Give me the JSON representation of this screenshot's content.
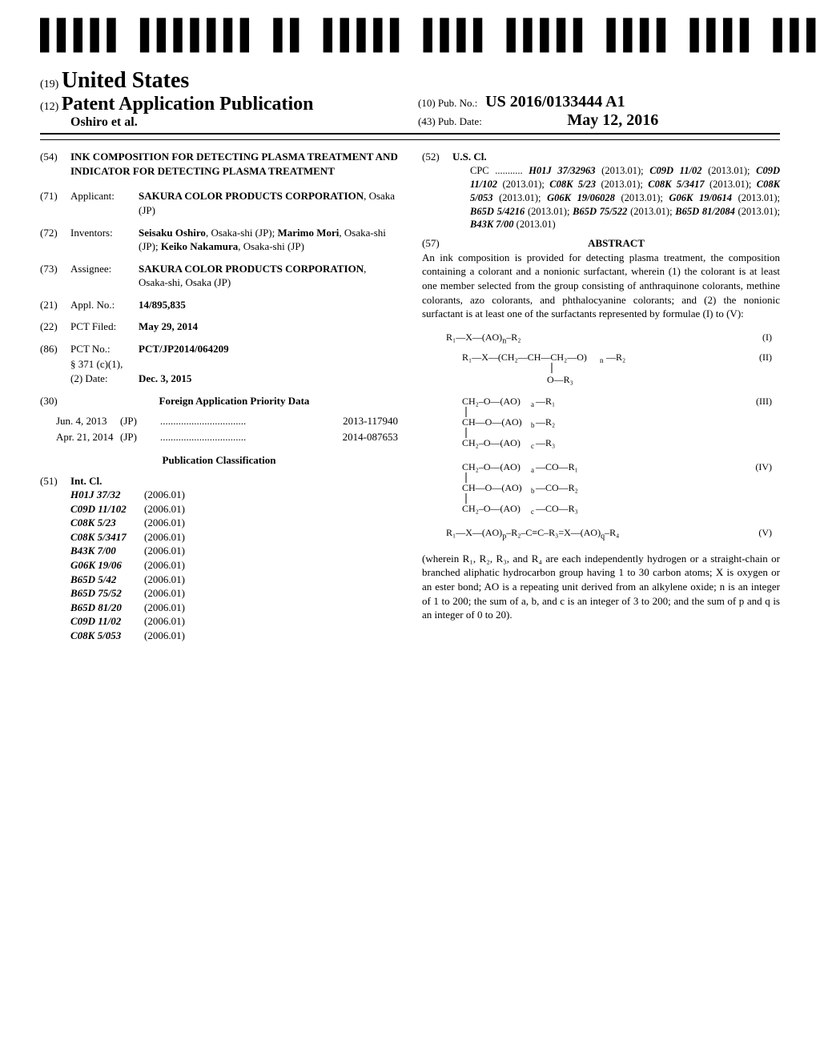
{
  "barcode_text": "US 20160133444A1",
  "country_num": "(19)",
  "country": "United States",
  "doc_type_num": "(12)",
  "doc_type": "Patent Application Publication",
  "authors_line": "Oshiro et al.",
  "pub_no_num": "(10)",
  "pub_no_label": "Pub. No.:",
  "pub_no": "US 2016/0133444 A1",
  "pub_date_num": "(43)",
  "pub_date_label": "Pub. Date:",
  "pub_date": "May 12, 2016",
  "title_num": "(54)",
  "title": "INK COMPOSITION FOR DETECTING PLASMA TREATMENT AND INDICATOR FOR DETECTING PLASMA TREATMENT",
  "applicant_num": "(71)",
  "applicant_label": "Applicant:",
  "applicant": "SAKURA COLOR PRODUCTS CORPORATION",
  "applicant_loc": ", Osaka (JP)",
  "inventors_num": "(72)",
  "inventors_label": "Inventors:",
  "inventors": "Seisaku Oshiro, Osaka-shi (JP); Marimo Mori, Osaka-shi (JP); Keiko Nakamura, Osaka-shi (JP)",
  "assignee_num": "(73)",
  "assignee_label": "Assignee:",
  "assignee": "SAKURA COLOR PRODUCTS CORPORATION",
  "assignee_loc": ", Osaka-shi, Osaka (JP)",
  "appl_no_num": "(21)",
  "appl_no_label": "Appl. No.:",
  "appl_no": "14/895,835",
  "pct_filed_num": "(22)",
  "pct_filed_label": "PCT Filed:",
  "pct_filed": "May 29, 2014",
  "pct_no_num": "(86)",
  "pct_no_label": "PCT No.:",
  "pct_no": "PCT/JP2014/064209",
  "s371_label": "§ 371 (c)(1),",
  "s371_date_label": "(2) Date:",
  "s371_date": "Dec. 3, 2015",
  "foreign_num": "(30)",
  "foreign_hdr": "Foreign Application Priority Data",
  "priority": [
    {
      "date": "Jun. 4, 2013",
      "ctry": "(JP)",
      "num": "2013-117940"
    },
    {
      "date": "Apr. 21, 2014",
      "ctry": "(JP)",
      "num": "2014-087653"
    }
  ],
  "pub_class_hdr": "Publication Classification",
  "int_cl_num": "(51)",
  "int_cl_label": "Int. Cl.",
  "int_cl": [
    {
      "code": "H01J 37/32",
      "year": "(2006.01)"
    },
    {
      "code": "C09D 11/102",
      "year": "(2006.01)"
    },
    {
      "code": "C08K 5/23",
      "year": "(2006.01)"
    },
    {
      "code": "C08K 5/3417",
      "year": "(2006.01)"
    },
    {
      "code": "B43K 7/00",
      "year": "(2006.01)"
    },
    {
      "code": "G06K 19/06",
      "year": "(2006.01)"
    },
    {
      "code": "B65D 5/42",
      "year": "(2006.01)"
    },
    {
      "code": "B65D 75/52",
      "year": "(2006.01)"
    },
    {
      "code": "B65D 81/20",
      "year": "(2006.01)"
    },
    {
      "code": "C09D 11/02",
      "year": "(2006.01)"
    },
    {
      "code": "C08K 5/053",
      "year": "(2006.01)"
    }
  ],
  "us_cl_num": "(52)",
  "us_cl_label": "U.S. Cl.",
  "cpc": "CPC ........... H01J 37/32963 (2013.01); C09D 11/02 (2013.01); C09D 11/102 (2013.01); C08K 5/23 (2013.01); C08K 5/3417 (2013.01); C08K 5/053 (2013.01); G06K 19/06028 (2013.01); G06K 19/0614 (2013.01); B65D 5/4216 (2013.01); B65D 75/522 (2013.01); B65D 81/2084 (2013.01); B43K 7/00 (2013.01)",
  "abstract_num": "(57)",
  "abstract_hdr": "ABSTRACT",
  "abstract_body": "An ink composition is provided for detecting plasma treatment, the composition containing a colorant and a nonionic surfactant, wherein (1) the colorant is at least one member selected from the group consisting of anthraquinone colorants, methine colorants, azo colorants, and phthalocyanine colorants; and (2) the nonionic surfactant is at least one of the surfactants represented by formulae (I) to (V):",
  "formulae_nums": [
    "(I)",
    "(II)",
    "(III)",
    "(IV)",
    "(V)"
  ],
  "wherein": "(wherein R₁, R₂, R₃, and R₄ are each independently hydrogen or a straight-chain or branched aliphatic hydrocarbon group having 1 to 30 carbon atoms; X is oxygen or an ester bond; AO is a repeating unit derived from an alkylene oxide; n is an integer of 1 to 200; the sum of a, b, and c is an integer of 3 to 200; and the sum of p and q is an integer of 0 to 20)."
}
